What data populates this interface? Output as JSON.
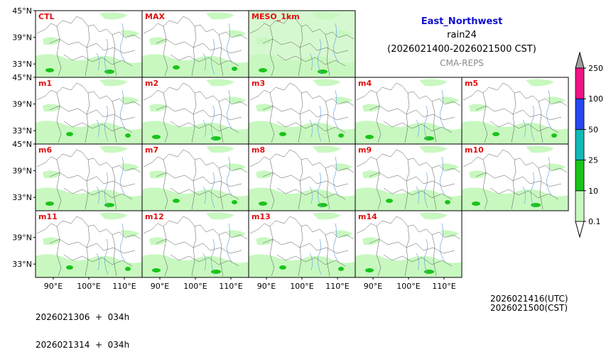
{
  "chart_data": {
    "type": "heatmap",
    "title": "East_Northwest",
    "variable": "rain24",
    "period": "(2026021400-2026021500 CST)",
    "source": "CMA-REPS",
    "panels": [
      "CTL",
      "MAX",
      "MESO_1km",
      "m1",
      "m2",
      "m3",
      "m4",
      "m5",
      "m6",
      "m7",
      "m8",
      "m9",
      "m10",
      "m11",
      "m12",
      "m13",
      "m14"
    ],
    "x_ticks": [
      "90°E",
      "100°E",
      "110°E"
    ],
    "y_ticks": [
      "45°N",
      "39°N",
      "33°N"
    ],
    "xlim": [
      85,
      115
    ],
    "ylim": [
      30,
      45
    ],
    "colorbar": {
      "ticks": [
        "0.1",
        "10",
        "25",
        "50",
        "100",
        "250"
      ],
      "colors": [
        "#c8f8c0",
        "#19c419",
        "#14b8b8",
        "#2649f0",
        "#f01486",
        "#a0a0a0"
      ],
      "extend": "both"
    },
    "init_times": [
      "2026021306  +  034h",
      "2026021314  +  034h"
    ],
    "valid_times": [
      "2026021416(UTC)",
      "2026021500(CST)"
    ]
  }
}
